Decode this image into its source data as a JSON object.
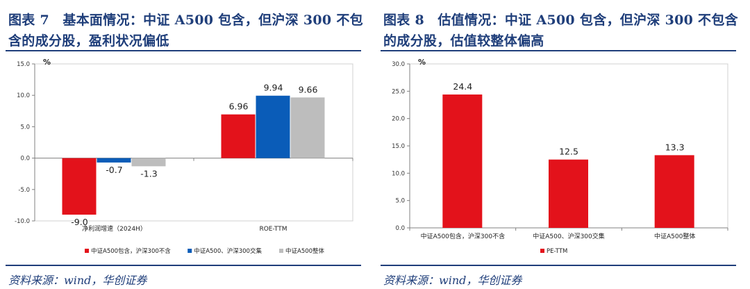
{
  "left": {
    "title": "图表 7　基本面情况：中证 A500 包含，但沪深 300 不包含的成分股，盈利状况偏低",
    "source": "资料来源：wind，华创证券"
  },
  "right": {
    "title": "图表 8　估值情况：中证 A500 包含，但沪深 300 不包含的成分股，估值较整体偏高",
    "source": "资料来源：wind，华创证券"
  },
  "chart_data": [
    {
      "type": "bar",
      "unit_label": "%",
      "categories": [
        "净利润增速（2024H）",
        "ROE-TTM"
      ],
      "series": [
        {
          "name": "中证A500包含，沪深300不含",
          "values": [
            -9.0,
            6.96
          ],
          "labels": [
            "-9.0",
            "6.96"
          ],
          "color": "#e3121b"
        },
        {
          "name": "中证A500、沪深300交集",
          "values": [
            -0.7,
            9.94
          ],
          "labels": [
            "-0.7",
            "9.94"
          ],
          "color": "#0a5cb8"
        },
        {
          "name": "中证A500整体",
          "values": [
            -1.3,
            9.66
          ],
          "labels": [
            "-1.3",
            "9.66"
          ],
          "color": "#bdbdbd"
        }
      ],
      "ylim": [
        -10,
        15
      ],
      "yticks": [
        "-10.0",
        "-5.0",
        "0.0",
        "5.0",
        "10.0",
        "15.0"
      ],
      "legend": "bottom",
      "grid": false
    },
    {
      "type": "bar",
      "unit_label": "%",
      "categories": [
        "中证A500包含，沪深300不含",
        "中证A500、沪深300交集",
        "中证A500整体"
      ],
      "series": [
        {
          "name": "PE-TTM",
          "values": [
            24.4,
            12.5,
            13.3
          ],
          "labels": [
            "24.4",
            "12.5",
            "13.3"
          ],
          "color": "#e3121b"
        }
      ],
      "ylim": [
        0,
        30
      ],
      "yticks": [
        "0.0",
        "5.0",
        "10.0",
        "15.0",
        "20.0",
        "25.0",
        "30.0"
      ],
      "legend": "bottom",
      "grid": false
    }
  ]
}
